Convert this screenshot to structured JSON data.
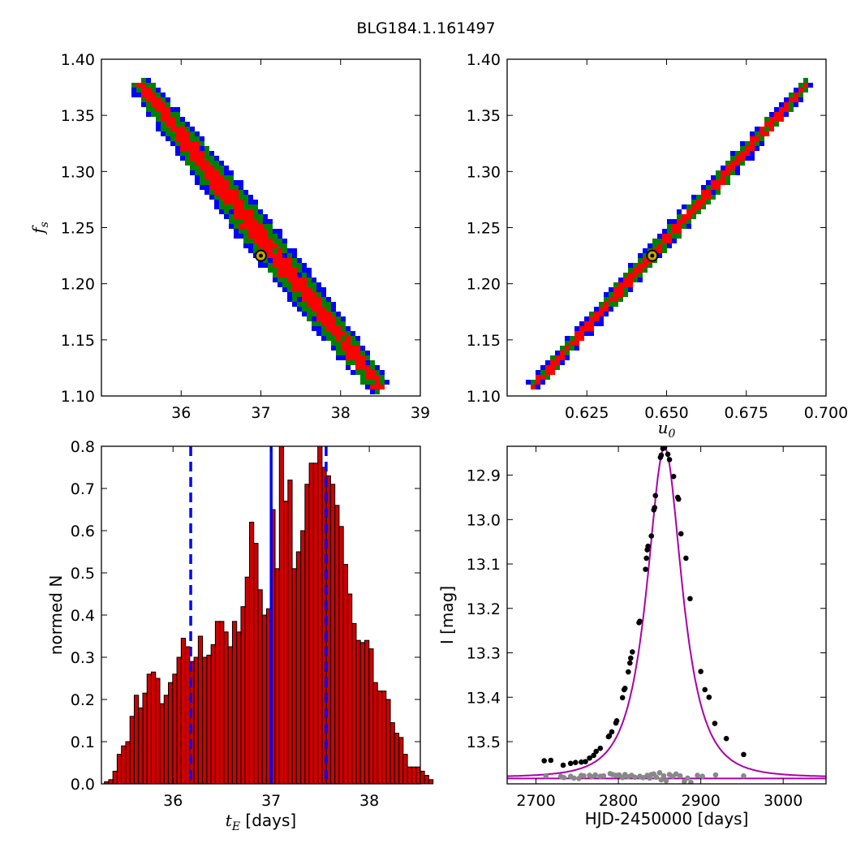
{
  "figure": {
    "title": "BLG184.1.161497"
  },
  "chart_data": [
    {
      "type": "heatmap",
      "id": "fs-vs-tE",
      "xlabel": "",
      "ylabel": "f_s",
      "xlim": [
        35,
        39
      ],
      "ylim": [
        1.1,
        1.4
      ],
      "xticks": [
        36,
        37,
        38,
        39
      ],
      "xtick_labels": [
        "36",
        "37",
        "38",
        "39"
      ],
      "yticks": [
        1.1,
        1.15,
        1.2,
        1.25,
        1.3,
        1.35,
        1.4
      ],
      "ytick_labels": [
        "1.10",
        "1.15",
        "1.20",
        "1.25",
        "1.30",
        "1.35",
        "1.40"
      ],
      "band": {
        "x_start": 35.45,
        "y_start": 1.38,
        "x_end": 38.45,
        "y_end": 1.11
      },
      "confidence_colors": {
        "outer": "#0000ff",
        "middle": "#008000",
        "inner": "#ff0000"
      },
      "best_fit": {
        "x": 37.0,
        "y": 1.225
      }
    },
    {
      "type": "heatmap",
      "id": "fs-vs-u0",
      "xlabel": "u_0",
      "ylabel": "",
      "xlim": [
        0.6,
        0.7
      ],
      "ylim": [
        1.1,
        1.4
      ],
      "xticks": [
        0.625,
        0.65,
        0.675,
        0.7
      ],
      "xtick_labels": [
        "0.625",
        "0.650",
        "0.675",
        "0.700"
      ],
      "yticks": [
        1.1,
        1.15,
        1.2,
        1.25,
        1.3,
        1.35,
        1.4
      ],
      "ytick_labels": [
        "1.10",
        "1.15",
        "1.20",
        "1.25",
        "1.30",
        "1.35",
        "1.40"
      ],
      "band": {
        "x_start": 0.6075,
        "y_start": 1.11,
        "x_end": 0.6935,
        "y_end": 1.38
      },
      "confidence_colors": {
        "outer": "#0000ff",
        "middle": "#008000",
        "inner": "#ff0000"
      },
      "best_fit": {
        "x": 0.6455,
        "y": 1.225
      }
    },
    {
      "type": "bar",
      "id": "tE-histogram",
      "xlabel": "t_E [days]",
      "ylabel": "normed N",
      "xlim": [
        35.27,
        38.52
      ],
      "ylim": [
        0,
        0.8
      ],
      "xticks": [
        36,
        37,
        38
      ],
      "xtick_labels": [
        "36",
        "37",
        "38"
      ],
      "yticks": [
        0,
        0.1,
        0.2,
        0.3,
        0.4,
        0.5,
        0.6,
        0.7,
        0.8
      ],
      "ytick_labels": [
        "0.0",
        "0.1",
        "0.2",
        "0.3",
        "0.4",
        "0.5",
        "0.6",
        "0.7",
        "0.8"
      ],
      "bin_start": 35.3,
      "bin_width": 0.0435,
      "values": [
        0.005,
        0.01,
        0.03,
        0.07,
        0.09,
        0.1,
        0.16,
        0.21,
        0.18,
        0.215,
        0.26,
        0.265,
        0.25,
        0.19,
        0.21,
        0.24,
        0.26,
        0.3,
        0.345,
        0.325,
        0.29,
        0.3,
        0.35,
        0.3,
        0.305,
        0.33,
        0.385,
        0.385,
        0.36,
        0.325,
        0.385,
        0.36,
        0.42,
        0.49,
        0.62,
        0.57,
        0.46,
        0.4,
        0.415,
        0.65,
        0.51,
        0.82,
        0.67,
        0.72,
        0.51,
        0.55,
        0.6,
        0.71,
        0.76,
        0.76,
        0.805,
        0.75,
        0.73,
        0.71,
        0.66,
        0.61,
        0.52,
        0.45,
        0.38,
        0.34,
        0.335,
        0.34,
        0.32,
        0.24,
        0.22,
        0.22,
        0.2,
        0.145,
        0.12,
        0.11,
        0.07,
        0.04,
        0.04,
        0.04,
        0.03,
        0.02,
        0.01
      ],
      "bar_color": "#cc0000",
      "lines": {
        "median": 37.0,
        "lower": 36.18,
        "upper": 37.56,
        "color": "#0000ff"
      }
    },
    {
      "type": "scatter",
      "id": "light-curve",
      "xlabel": "HJD-2450000 [days]",
      "ylabel": "I [mag]",
      "xlim": [
        2665,
        3052
      ],
      "ylim": [
        13.595,
        12.835
      ],
      "y_inverted": true,
      "xticks": [
        2700,
        2800,
        2900,
        3000
      ],
      "xtick_labels": [
        "2700",
        "2800",
        "2900",
        "3000"
      ],
      "yticks": [
        12.9,
        13.0,
        13.1,
        13.2,
        13.3,
        13.4,
        13.5
      ],
      "ytick_labels": [
        "12.9",
        "13.0",
        "13.1",
        "13.2",
        "13.3",
        "13.4",
        "13.5"
      ],
      "model": {
        "t0": 2856,
        "tE": 37.0,
        "u0": 0.6455,
        "baseline": 13.58,
        "color": "#aa00aa"
      },
      "points": [
        [
          2710,
          13.543
        ],
        [
          2718,
          13.542
        ],
        [
          2733,
          13.553
        ],
        [
          2742,
          13.549
        ],
        [
          2748,
          13.547
        ],
        [
          2755,
          13.546
        ],
        [
          2760,
          13.545
        ],
        [
          2765,
          13.537
        ],
        [
          2770,
          13.531
        ],
        [
          2773,
          13.522
        ],
        [
          2778,
          13.515
        ],
        [
          2788,
          13.489
        ],
        [
          2789,
          13.487
        ],
        [
          2792,
          13.478
        ],
        [
          2797,
          13.458
        ],
        [
          2798,
          13.453
        ],
        [
          2805,
          13.401
        ],
        [
          2807,
          13.383
        ],
        [
          2808,
          13.38
        ],
        [
          2812,
          13.343
        ],
        [
          2814,
          13.323
        ],
        [
          2815,
          13.312
        ],
        [
          2817,
          13.298
        ],
        [
          2825,
          13.232
        ],
        [
          2826,
          13.229
        ],
        [
          2833,
          13.112
        ],
        [
          2834,
          13.087
        ],
        [
          2835,
          13.068
        ],
        [
          2836,
          13.06
        ],
        [
          2840,
          13.037
        ],
        [
          2843,
          12.978
        ],
        [
          2844,
          12.973
        ],
        [
          2845,
          12.946
        ],
        [
          2851,
          12.86
        ],
        [
          2852,
          12.855
        ],
        [
          2854,
          12.84
        ],
        [
          2856,
          12.838
        ],
        [
          2860,
          12.853
        ],
        [
          2862,
          12.865
        ],
        [
          2867,
          12.903
        ],
        [
          2872,
          12.95
        ],
        [
          2873,
          12.954
        ],
        [
          2876,
          13.032
        ],
        [
          2882,
          13.087
        ],
        [
          2887,
          13.178
        ],
        [
          2900,
          13.342
        ],
        [
          2905,
          13.383
        ],
        [
          2910,
          13.4
        ],
        [
          2917,
          13.459
        ],
        [
          2931,
          13.493
        ],
        [
          2952,
          13.529
        ]
      ],
      "residual_points": [
        [
          2712,
          13.577
        ],
        [
          2730,
          13.578
        ],
        [
          2734,
          13.581
        ],
        [
          2742,
          13.578
        ],
        [
          2746,
          13.582
        ],
        [
          2752,
          13.583
        ],
        [
          2755,
          13.576
        ],
        [
          2758,
          13.577
        ],
        [
          2765,
          13.576
        ],
        [
          2768,
          13.579
        ],
        [
          2772,
          13.575
        ],
        [
          2778,
          13.578
        ],
        [
          2782,
          13.577
        ],
        [
          2790,
          13.572
        ],
        [
          2793,
          13.574
        ],
        [
          2797,
          13.576
        ],
        [
          2801,
          13.575
        ],
        [
          2805,
          13.581
        ],
        [
          2808,
          13.574
        ],
        [
          2812,
          13.579
        ],
        [
          2816,
          13.576
        ],
        [
          2820,
          13.58
        ],
        [
          2826,
          13.578
        ],
        [
          2830,
          13.581
        ],
        [
          2835,
          13.576
        ],
        [
          2838,
          13.582
        ],
        [
          2840,
          13.574
        ],
        [
          2843,
          13.573
        ],
        [
          2846,
          13.58
        ],
        [
          2850,
          13.57
        ],
        [
          2852,
          13.586
        ],
        [
          2855,
          13.577
        ],
        [
          2858,
          13.588
        ],
        [
          2862,
          13.574
        ],
        [
          2866,
          13.578
        ],
        [
          2870,
          13.573
        ],
        [
          2875,
          13.577
        ],
        [
          2880,
          13.59
        ],
        [
          2884,
          13.582
        ],
        [
          2888,
          13.592
        ],
        [
          2896,
          13.576
        ],
        [
          2902,
          13.578
        ],
        [
          2918,
          13.575
        ],
        [
          2952,
          13.577
        ]
      ]
    }
  ]
}
